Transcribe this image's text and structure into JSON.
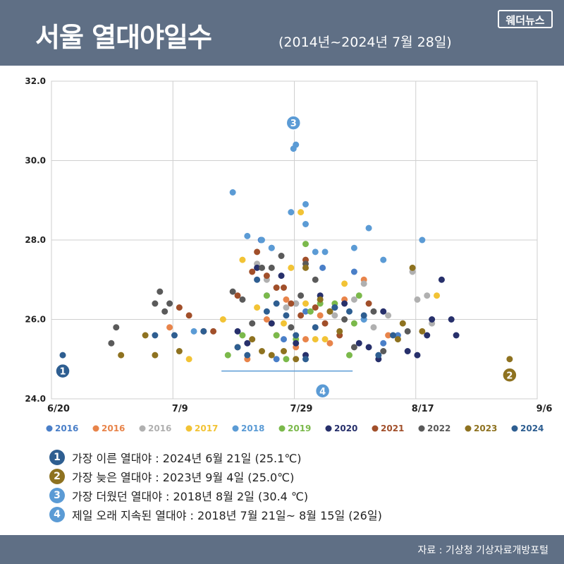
{
  "header": {
    "title": "서울 열대야일수",
    "subtitle": "(2014년~2024년 7월 28일)",
    "brand": "웨더뉴스",
    "bg_color": "#5f6f85"
  },
  "chart_data": {
    "type": "scatter",
    "ylim": [
      24.0,
      32.0
    ],
    "y_ticks": [
      "24.0",
      "26.0",
      "28.0",
      "30.0",
      "32.0"
    ],
    "x_ticks": [
      "6/20",
      "7/9",
      "7/29",
      "8/17",
      "9/6"
    ],
    "grid": true,
    "legend_position": "bottom",
    "series": [
      {
        "name": "2016",
        "color": "#4a7fc8",
        "points": [
          [
            0.408,
            28.0
          ],
          [
            0.43,
            27.8
          ],
          [
            0.42,
            26.6
          ],
          [
            0.44,
            25.0
          ],
          [
            0.455,
            25.5
          ],
          [
            0.48,
            26.4
          ],
          [
            0.5,
            26.2
          ],
          [
            0.535,
            27.3
          ],
          [
            0.6,
            27.2
          ],
          [
            0.62,
            26.0
          ],
          [
            0.66,
            25.4
          ],
          [
            0.69,
            25.6
          ]
        ]
      },
      {
        "name": "2016",
        "color": "#e8844a",
        "points": [
          [
            0.22,
            25.8
          ],
          [
            0.38,
            25.0
          ],
          [
            0.42,
            26.0
          ],
          [
            0.44,
            25.6
          ],
          [
            0.46,
            26.5
          ],
          [
            0.48,
            25.3
          ],
          [
            0.5,
            25.5
          ],
          [
            0.53,
            26.1
          ],
          [
            0.55,
            25.4
          ],
          [
            0.58,
            26.5
          ],
          [
            0.62,
            27.0
          ],
          [
            0.67,
            25.6
          ]
        ]
      },
      {
        "name": "2016",
        "color": "#b0b0b0",
        "points": [
          [
            0.4,
            27.4
          ],
          [
            0.42,
            27.0
          ],
          [
            0.44,
            26.8
          ],
          [
            0.46,
            26.3
          ],
          [
            0.48,
            26.4
          ],
          [
            0.53,
            26.5
          ],
          [
            0.56,
            26.1
          ],
          [
            0.6,
            26.5
          ],
          [
            0.62,
            26.9
          ],
          [
            0.64,
            25.8
          ],
          [
            0.67,
            26.1
          ],
          [
            0.72,
            27.2
          ],
          [
            0.73,
            26.5
          ],
          [
            0.75,
            26.6
          ],
          [
            0.76,
            25.9
          ]
        ]
      },
      {
        "name": "2017",
        "color": "#f2c335",
        "points": [
          [
            0.26,
            25.0
          ],
          [
            0.33,
            26.0
          ],
          [
            0.37,
            27.5
          ],
          [
            0.4,
            26.3
          ],
          [
            0.43,
            25.9
          ],
          [
            0.455,
            25.9
          ],
          [
            0.47,
            27.3
          ],
          [
            0.49,
            28.7
          ],
          [
            0.5,
            26.4
          ],
          [
            0.52,
            25.5
          ],
          [
            0.54,
            25.5
          ],
          [
            0.58,
            26.9
          ],
          [
            0.77,
            26.6
          ]
        ]
      },
      {
        "name": "2018",
        "color": "#5b9bd5",
        "points": [
          [
            0.27,
            25.7
          ],
          [
            0.35,
            29.2
          ],
          [
            0.38,
            28.1
          ],
          [
            0.41,
            28.0
          ],
          [
            0.43,
            27.8
          ],
          [
            0.475,
            30.3
          ],
          [
            0.48,
            30.4
          ],
          [
            0.5,
            28.9
          ],
          [
            0.47,
            28.7
          ],
          [
            0.5,
            28.4
          ],
          [
            0.52,
            27.7
          ],
          [
            0.54,
            27.7
          ],
          [
            0.6,
            27.8
          ],
          [
            0.63,
            28.3
          ],
          [
            0.66,
            27.5
          ],
          [
            0.74,
            28.0
          ],
          [
            0.62,
            26.0
          ]
        ]
      },
      {
        "name": "2019",
        "color": "#7bb94b",
        "points": [
          [
            0.34,
            25.1
          ],
          [
            0.37,
            25.6
          ],
          [
            0.42,
            26.6
          ],
          [
            0.44,
            25.6
          ],
          [
            0.46,
            25.0
          ],
          [
            0.48,
            25.5
          ],
          [
            0.5,
            27.9
          ],
          [
            0.51,
            26.2
          ],
          [
            0.53,
            26.4
          ],
          [
            0.56,
            26.4
          ],
          [
            0.59,
            25.1
          ],
          [
            0.6,
            25.9
          ],
          [
            0.61,
            26.6
          ]
        ]
      },
      {
        "name": "2020",
        "color": "#27306b",
        "points": [
          [
            0.36,
            25.7
          ],
          [
            0.38,
            25.4
          ],
          [
            0.4,
            27.3
          ],
          [
            0.43,
            25.9
          ],
          [
            0.45,
            27.1
          ],
          [
            0.48,
            25.4
          ],
          [
            0.5,
            25.1
          ],
          [
            0.53,
            26.6
          ],
          [
            0.56,
            26.3
          ],
          [
            0.58,
            26.4
          ],
          [
            0.61,
            25.4
          ],
          [
            0.63,
            25.3
          ],
          [
            0.65,
            25.0
          ],
          [
            0.66,
            26.2
          ],
          [
            0.71,
            25.2
          ],
          [
            0.73,
            25.1
          ],
          [
            0.75,
            25.6
          ],
          [
            0.76,
            26.0
          ],
          [
            0.78,
            27.0
          ],
          [
            0.8,
            26.0
          ],
          [
            0.81,
            25.6
          ]
        ]
      },
      {
        "name": "2021",
        "color": "#a14f2a",
        "points": [
          [
            0.24,
            26.3
          ],
          [
            0.26,
            26.1
          ],
          [
            0.29,
            25.7
          ],
          [
            0.31,
            25.7
          ],
          [
            0.36,
            26.6
          ],
          [
            0.39,
            27.2
          ],
          [
            0.4,
            27.7
          ],
          [
            0.42,
            27.1
          ],
          [
            0.44,
            26.8
          ],
          [
            0.455,
            26.8
          ],
          [
            0.47,
            26.4
          ],
          [
            0.49,
            26.1
          ],
          [
            0.5,
            27.5
          ],
          [
            0.52,
            26.3
          ],
          [
            0.54,
            25.9
          ],
          [
            0.57,
            25.6
          ],
          [
            0.63,
            26.4
          ]
        ]
      },
      {
        "name": "2022",
        "color": "#5a5a5a",
        "points": [
          [
            0.1,
            25.4
          ],
          [
            0.11,
            25.8
          ],
          [
            0.19,
            26.4
          ],
          [
            0.2,
            26.7
          ],
          [
            0.21,
            26.2
          ],
          [
            0.22,
            26.4
          ],
          [
            0.35,
            26.7
          ],
          [
            0.37,
            26.5
          ],
          [
            0.39,
            25.9
          ],
          [
            0.41,
            27.3
          ],
          [
            0.43,
            27.3
          ],
          [
            0.45,
            27.6
          ],
          [
            0.47,
            25.8
          ],
          [
            0.49,
            26.6
          ],
          [
            0.5,
            27.4
          ],
          [
            0.52,
            27.0
          ],
          [
            0.55,
            26.2
          ],
          [
            0.58,
            26.0
          ],
          [
            0.6,
            25.3
          ],
          [
            0.64,
            26.2
          ],
          [
            0.66,
            25.2
          ],
          [
            0.71,
            25.7
          ]
        ]
      },
      {
        "name": "2023",
        "color": "#8e7220",
        "points": [
          [
            0.12,
            25.1
          ],
          [
            0.17,
            25.6
          ],
          [
            0.19,
            25.1
          ],
          [
            0.24,
            25.2
          ],
          [
            0.36,
            25.3
          ],
          [
            0.39,
            25.5
          ],
          [
            0.41,
            25.2
          ],
          [
            0.43,
            25.1
          ],
          [
            0.455,
            25.2
          ],
          [
            0.48,
            25.0
          ],
          [
            0.5,
            27.3
          ],
          [
            0.53,
            26.5
          ],
          [
            0.55,
            26.2
          ],
          [
            0.57,
            25.7
          ],
          [
            0.69,
            25.5
          ],
          [
            0.7,
            25.9
          ],
          [
            0.72,
            27.3
          ],
          [
            0.74,
            25.7
          ],
          [
            0.92,
            25.0
          ]
        ]
      },
      {
        "name": "2024",
        "color": "#2e5e91",
        "points": [
          [
            0.0,
            25.1
          ],
          [
            0.19,
            25.6
          ],
          [
            0.23,
            25.6
          ],
          [
            0.29,
            25.7
          ],
          [
            0.36,
            25.3
          ],
          [
            0.38,
            25.1
          ],
          [
            0.4,
            27.0
          ],
          [
            0.42,
            26.2
          ],
          [
            0.44,
            26.4
          ],
          [
            0.46,
            26.1
          ],
          [
            0.48,
            25.6
          ],
          [
            0.5,
            25.0
          ],
          [
            0.52,
            25.8
          ],
          [
            0.56,
            26.3
          ],
          [
            0.59,
            26.2
          ],
          [
            0.62,
            26.1
          ],
          [
            0.65,
            25.1
          ],
          [
            0.68,
            25.6
          ]
        ]
      }
    ],
    "annotations": [
      {
        "num": "1",
        "x": 0.0,
        "y": 24.7,
        "color": "#2e5e91"
      },
      {
        "num": "2",
        "x": 0.92,
        "y": 24.6,
        "color": "#8e7220"
      },
      {
        "num": "3",
        "x": 0.475,
        "y": 30.95,
        "color": "#5b9bd5"
      },
      {
        "num": "4",
        "x": 0.535,
        "y": 24.2,
        "color": "#5b9bd5"
      }
    ],
    "span_line": {
      "x0": 0.35,
      "x1": 0.62,
      "y": 24.7,
      "color": "#5b9bd5"
    }
  },
  "legend": [
    {
      "label": "2016",
      "color": "#4a7fc8"
    },
    {
      "label": "2016",
      "color": "#e8844a"
    },
    {
      "label": "2016",
      "color": "#b0b0b0"
    },
    {
      "label": "2017",
      "color": "#f2c335"
    },
    {
      "label": "2018",
      "color": "#5b9bd5"
    },
    {
      "label": "2019",
      "color": "#7bb94b"
    },
    {
      "label": "2020",
      "color": "#27306b"
    },
    {
      "label": "2021",
      "color": "#a14f2a"
    },
    {
      "label": "2022",
      "color": "#5a5a5a"
    },
    {
      "label": "2023",
      "color": "#8e7220"
    },
    {
      "label": "2024",
      "color": "#2e5e91"
    }
  ],
  "notes": [
    {
      "num": "1",
      "color": "#2e5e91",
      "text": "가장 이른 열대야 : 2024년 6월 21일 (25.1℃)"
    },
    {
      "num": "2",
      "color": "#8e7220",
      "text": "가장 늦은 열대야 : 2023년 9월 4일 (25.0℃)"
    },
    {
      "num": "3",
      "color": "#5b9bd5",
      "text": "가장 더웠던 열대야 : 2018년 8월 2일 (30.4 ℃)"
    },
    {
      "num": "4",
      "color": "#5b9bd5",
      "text": "제일 오래 지속된 열대야 : 2018년 7월 21일~ 8월 15일 (26일)"
    }
  ],
  "footer": {
    "source": "자료 : 기상청 기상자료개방포털"
  }
}
